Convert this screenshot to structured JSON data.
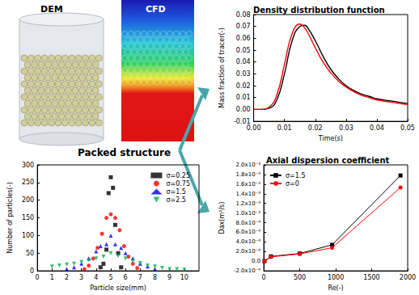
{
  "labels": {
    "dem": "DEM",
    "cfd": "CFD",
    "packed_structure": "Packed structure"
  },
  "chart_data": [
    {
      "type": "line",
      "title": "Density distribution function",
      "x_label": "Time(s)",
      "y_label": "Mass fraction of tracer(-)",
      "x": [
        0,
        0.0025,
        0.005,
        0.0075,
        0.01,
        0.0125,
        0.015,
        0.0165,
        0.0175,
        0.02,
        0.0225,
        0.025,
        0.0275,
        0.03,
        0.0325,
        0.035,
        0.0375,
        0.04,
        0.045,
        0.05
      ],
      "series": [
        {
          "color": "#000000",
          "values": [
            0,
            0,
            0.001,
            0.008,
            0.03,
            0.058,
            0.07,
            0.071,
            0.069,
            0.058,
            0.045,
            0.034,
            0.026,
            0.02,
            0.016,
            0.013,
            0.011,
            0.009,
            0.007,
            0.005
          ]
        },
        {
          "color": "#ff0000",
          "values": [
            0,
            0,
            0.002,
            0.012,
            0.038,
            0.064,
            0.072,
            0.069,
            0.065,
            0.052,
            0.04,
            0.031,
            0.024,
            0.019,
            0.015,
            0.012,
            0.01,
            0.008,
            0.006,
            0.004
          ]
        }
      ],
      "xlim": [
        0,
        0.05
      ],
      "xticks": [
        {
          "value": 0,
          "label": "0.00"
        },
        0.01,
        0.02,
        0.03,
        0.04,
        0.05
      ],
      "ylim": [
        -0.01,
        0.08
      ],
      "yticks": [
        -0.01,
        {
          "value": 0,
          "label": "0.00"
        },
        0.01,
        0.02,
        0.03,
        0.04,
        0.05,
        0.06,
        0.07,
        0.08
      ],
      "grid": false
    },
    {
      "type": "scatter",
      "x_label": "Particle size(mm)",
      "y_label": "Number of particles(-)",
      "series": [
        {
          "name": "σ=0.25",
          "color": "#000000",
          "marker": "square",
          "x": [
            4.3,
            4.5,
            4.7,
            4.85,
            5.0,
            5.15,
            5.3,
            5.5,
            5.7
          ],
          "values": [
            10,
            20,
            60,
            220,
            265,
            235,
            130,
            50,
            10
          ]
        },
        {
          "name": "σ=0.75",
          "color": "#ff0000",
          "marker": "circle",
          "x": [
            3.2,
            3.5,
            3.8,
            4.1,
            4.4,
            4.7,
            5.0,
            5.3,
            5.6,
            5.9,
            6.2,
            6.5,
            6.8
          ],
          "values": [
            5,
            15,
            35,
            65,
            105,
            150,
            160,
            150,
            115,
            70,
            40,
            20,
            8
          ]
        },
        {
          "name": "σ=1.5",
          "color": "#0000ff",
          "marker": "triangle",
          "x": [
            2,
            2.5,
            3,
            3.5,
            4,
            4.3,
            4.7,
            5,
            5.3,
            5.7,
            6,
            6.5,
            7,
            7.5,
            8
          ],
          "values": [
            5,
            10,
            20,
            35,
            55,
            70,
            75,
            100,
            75,
            65,
            50,
            35,
            20,
            12,
            5
          ]
        },
        {
          "name": "σ=2.5",
          "color": "#00b050",
          "marker": "triangle-down",
          "x": [
            1,
            1.5,
            2,
            2.5,
            3,
            3.5,
            4,
            4.5,
            5,
            5.5,
            6,
            6.5,
            7,
            7.5,
            8,
            8.5,
            9,
            9.5,
            10
          ],
          "values": [
            12,
            15,
            18,
            20,
            25,
            30,
            35,
            40,
            50,
            42,
            35,
            28,
            22,
            15,
            12,
            8,
            5,
            5,
            3
          ]
        }
      ],
      "xlim": [
        0,
        11
      ],
      "xticks": [
        0,
        1,
        2,
        3,
        4,
        5,
        6,
        7,
        8,
        9,
        10
      ],
      "ylim": [
        0,
        300
      ],
      "yticks": [
        0,
        50,
        100,
        150,
        200,
        250,
        300
      ],
      "legend": "upper right",
      "grid": false
    },
    {
      "type": "line",
      "title": "Axial dispersion coefficient",
      "x_label": "Re(-)",
      "y_label": "Dax(m²/s)",
      "series": [
        {
          "name": "σ=1.5",
          "color": "#000000",
          "marker": "square",
          "x": [
            10,
            100,
            500,
            950,
            1900
          ],
          "values": [
            0,
            0.0001,
            0.00016,
            0.00034,
            0.00178
          ]
        },
        {
          "name": "σ=0",
          "color": "#ff0000",
          "marker": "circle",
          "x": [
            10,
            100,
            500,
            950,
            1900
          ],
          "values": [
            0,
            9e-05,
            0.00015,
            0.00028,
            0.00153
          ]
        }
      ],
      "xlim": [
        0,
        2000
      ],
      "xticks": [
        0,
        500,
        1000,
        1500,
        2000
      ],
      "ylim": [
        -0.0002,
        0.002
      ],
      "yticks": [
        {
          "value": -0.0002,
          "label": "-2.0x10⁻⁴"
        },
        {
          "value": 0,
          "label": "0.0"
        },
        {
          "value": 0.0002,
          "label": "2.0x10⁻⁴"
        },
        {
          "value": 0.0004,
          "label": "4.0x10⁻⁴"
        },
        {
          "value": 0.0006,
          "label": "6.0x10⁻⁴"
        },
        {
          "value": 0.0008,
          "label": "8.0x10⁻⁴"
        },
        {
          "value": 0.001,
          "label": "1.0x10⁻³"
        },
        {
          "value": 0.0012,
          "label": "1.2x10⁻³"
        },
        {
          "value": 0.0014,
          "label": "1.4x10⁻³"
        },
        {
          "value": 0.0016,
          "label": "1.6x10⁻³"
        },
        {
          "value": 0.0018,
          "label": "1.8x10⁻³"
        },
        {
          "value": 0.002,
          "label": "2.0x10⁻³"
        }
      ],
      "legend": "upper left",
      "grid": false
    }
  ]
}
